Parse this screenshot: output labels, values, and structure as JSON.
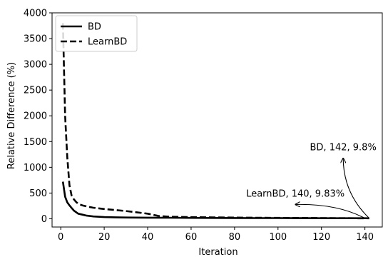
{
  "chart_data": {
    "type": "line",
    "xlabel": "Iteration",
    "ylabel": "Relative Difference (%)",
    "xlim": [
      -4,
      148
    ],
    "ylim": [
      -160,
      4000
    ],
    "xticks": [
      0,
      20,
      40,
      60,
      80,
      100,
      120,
      140
    ],
    "yticks": [
      0,
      500,
      1000,
      1500,
      2000,
      2500,
      3000,
      3500,
      4000
    ],
    "grid": false,
    "legend": "top-left",
    "series": [
      {
        "name": "BD",
        "style": "solid",
        "color": "#000000",
        "x": [
          1,
          2,
          3,
          4,
          5,
          6,
          7,
          8,
          10,
          12,
          15,
          20,
          25,
          30,
          40,
          50,
          60,
          70,
          80,
          90,
          100,
          110,
          120,
          130,
          140,
          142
        ],
        "y": [
          720,
          430,
          320,
          260,
          210,
          160,
          130,
          100,
          80,
          60,
          45,
          33,
          28,
          25,
          22,
          20,
          18,
          16,
          15,
          14,
          13,
          12,
          11,
          10.5,
          10,
          9.8
        ]
      },
      {
        "name": "LearnBD",
        "style": "dashed",
        "color": "#000000",
        "x": [
          1,
          2,
          3,
          4,
          5,
          6,
          7,
          8,
          10,
          12,
          15,
          20,
          25,
          30,
          35,
          40,
          45,
          50,
          60,
          70,
          80,
          90,
          100,
          110,
          120,
          130,
          140
        ],
        "y": [
          3800,
          2000,
          1200,
          650,
          450,
          380,
          330,
          290,
          260,
          240,
          215,
          190,
          170,
          150,
          125,
          100,
          55,
          40,
          32,
          27,
          23,
          20,
          17,
          15,
          13,
          11,
          9.83
        ]
      }
    ],
    "annotations": [
      {
        "text": "BD, 142, 9.8%",
        "point": [
          142,
          9.8
        ],
        "text_at": [
          130,
          1330
        ]
      },
      {
        "text": "LearnBD, 140, 9.83%",
        "point": [
          140,
          9.83
        ],
        "text_at": [
          108,
          430
        ]
      }
    ]
  }
}
